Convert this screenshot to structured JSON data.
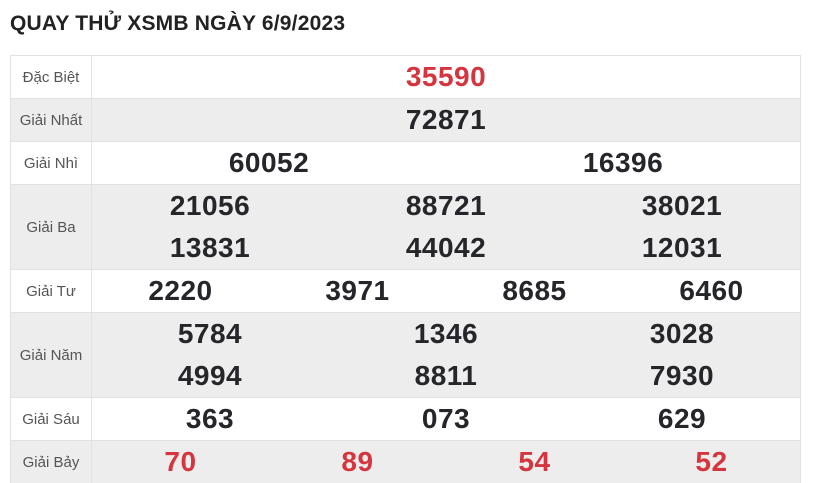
{
  "header": {
    "title": "QUAY THỬ XSMB NGÀY 6/9/2023"
  },
  "colors": {
    "accent_red": "#d4353e",
    "row_alt_bg": "#ededed",
    "border": "#e2e2e2",
    "number": "#25262a",
    "label": "#555555"
  },
  "table": {
    "rows": [
      {
        "key": "dac-biet",
        "label": "Đặc Biệt",
        "highlight": true,
        "lines": [
          [
            "35590"
          ]
        ]
      },
      {
        "key": "giai-nhat",
        "label": "Giải Nhất",
        "highlight": false,
        "lines": [
          [
            "72871"
          ]
        ]
      },
      {
        "key": "giai-nhi",
        "label": "Giải Nhì",
        "highlight": false,
        "lines": [
          [
            "60052",
            "16396"
          ]
        ]
      },
      {
        "key": "giai-ba",
        "label": "Giải Ba",
        "highlight": false,
        "lines": [
          [
            "21056",
            "88721",
            "38021"
          ],
          [
            "13831",
            "44042",
            "12031"
          ]
        ]
      },
      {
        "key": "giai-tu",
        "label": "Giải Tư",
        "highlight": false,
        "lines": [
          [
            "2220",
            "3971",
            "8685",
            "6460"
          ]
        ]
      },
      {
        "key": "giai-nam",
        "label": "Giải Năm",
        "highlight": false,
        "lines": [
          [
            "5784",
            "1346",
            "3028"
          ],
          [
            "4994",
            "8811",
            "7930"
          ]
        ]
      },
      {
        "key": "giai-sau",
        "label": "Giải Sáu",
        "highlight": false,
        "lines": [
          [
            "363",
            "073",
            "629"
          ]
        ]
      },
      {
        "key": "giai-bay",
        "label": "Giải Bảy",
        "highlight": true,
        "lines": [
          [
            "70",
            "89",
            "54",
            "52"
          ]
        ]
      }
    ]
  }
}
